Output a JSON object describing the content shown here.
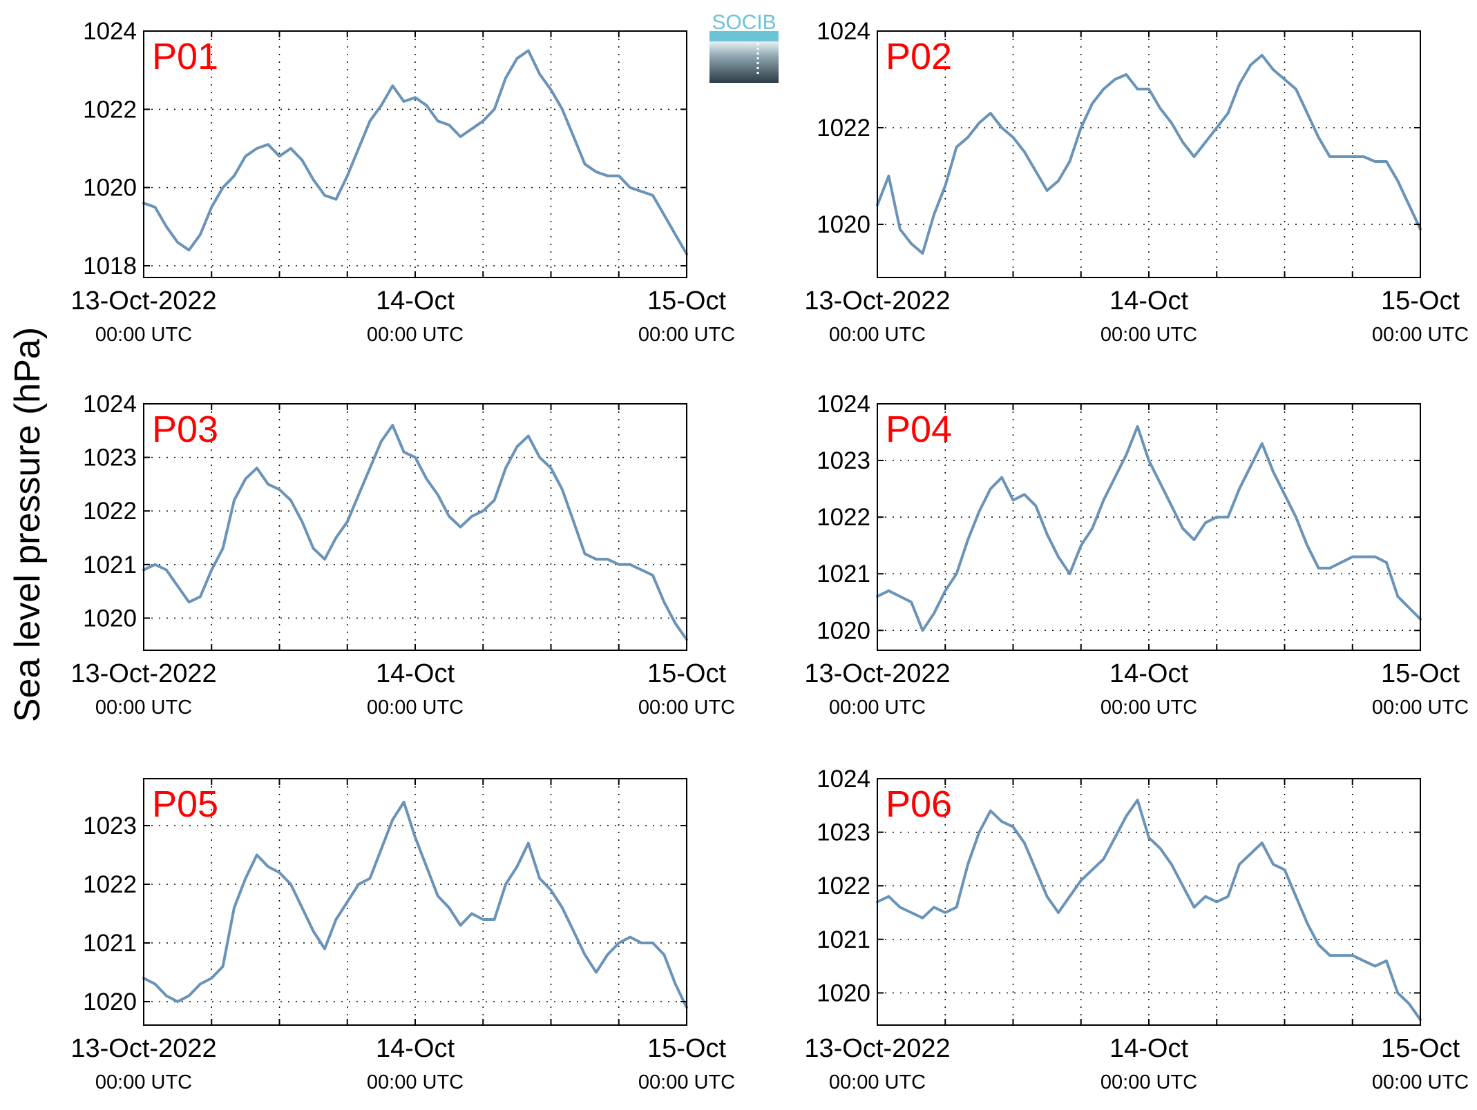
{
  "figure": {
    "ylabel": "Sea level pressure (hPa)",
    "line_color": "#6a93b8",
    "label_color": "#ff0000"
  },
  "logo": {
    "text": "SOCIB",
    "top_color": "#6cc3d5",
    "bottom_color": "#2c3b46"
  },
  "chart_data": [
    {
      "type": "line",
      "panel_label": "P01",
      "xlabel": "",
      "ylabel": "",
      "xlim": [
        "2022-10-13 00:00",
        "2022-10-15 00:00"
      ],
      "ylim": [
        1017.7,
        1024
      ],
      "yticks": [
        1018,
        1020,
        1022,
        1024
      ],
      "xticks": [
        {
          "label": "13-Oct-2022",
          "sub": "00:00 UTC"
        },
        {
          "label": "14-Oct",
          "sub": "00:00 UTC"
        },
        {
          "label": "15-Oct",
          "sub": "00:00 UTC"
        }
      ],
      "grid": true,
      "x_hours": [
        0,
        1,
        2,
        3,
        4,
        5,
        6,
        7,
        8,
        9,
        10,
        11,
        12,
        13,
        14,
        15,
        16,
        17,
        18,
        19,
        20,
        21,
        22,
        23,
        24,
        25,
        26,
        27,
        28,
        29,
        30,
        31,
        32,
        33,
        34,
        35,
        36,
        37,
        38,
        39,
        40,
        41,
        42,
        43,
        44,
        45,
        46,
        47,
        48
      ],
      "values": [
        1019.6,
        1019.5,
        1019.0,
        1018.6,
        1018.4,
        1018.8,
        1019.5,
        1020.0,
        1020.3,
        1020.8,
        1021.0,
        1021.1,
        1020.8,
        1021.0,
        1020.7,
        1020.2,
        1019.8,
        1019.7,
        1020.3,
        1021.0,
        1021.7,
        1022.1,
        1022.6,
        1022.2,
        1022.3,
        1022.1,
        1021.7,
        1021.6,
        1021.3,
        1021.5,
        1021.7,
        1022.0,
        1022.8,
        1023.3,
        1023.5,
        1022.9,
        1022.5,
        1022.0,
        1021.3,
        1020.6,
        1020.4,
        1020.3,
        1020.3,
        1020.0,
        1019.9,
        1019.8,
        1019.3,
        1018.8,
        1018.3
      ]
    },
    {
      "type": "line",
      "panel_label": "P02",
      "xlabel": "",
      "ylabel": "",
      "xlim": [
        "2022-10-13 00:00",
        "2022-10-15 00:00"
      ],
      "ylim": [
        1018.9,
        1024
      ],
      "yticks": [
        1020,
        1022,
        1024
      ],
      "xticks": [
        {
          "label": "13-Oct-2022",
          "sub": "00:00 UTC"
        },
        {
          "label": "14-Oct",
          "sub": "00:00 UTC"
        },
        {
          "label": "15-Oct",
          "sub": "00:00 UTC"
        }
      ],
      "grid": true,
      "x_hours": [
        0,
        1,
        2,
        3,
        4,
        5,
        6,
        7,
        8,
        9,
        10,
        11,
        12,
        13,
        14,
        15,
        16,
        17,
        18,
        19,
        20,
        21,
        22,
        23,
        24,
        25,
        26,
        27,
        28,
        29,
        30,
        31,
        32,
        33,
        34,
        35,
        36,
        37,
        38,
        39,
        40,
        41,
        42,
        43,
        44,
        45,
        46,
        47,
        48
      ],
      "values": [
        1020.4,
        1021.0,
        1019.9,
        1019.6,
        1019.4,
        1020.2,
        1020.8,
        1021.6,
        1021.8,
        1022.1,
        1022.3,
        1022.0,
        1021.8,
        1021.5,
        1021.1,
        1020.7,
        1020.9,
        1021.3,
        1022.0,
        1022.5,
        1022.8,
        1023.0,
        1023.1,
        1022.8,
        1022.8,
        1022.4,
        1022.1,
        1021.7,
        1021.4,
        1021.7,
        1022.0,
        1022.3,
        1022.9,
        1023.3,
        1023.5,
        1023.2,
        1023.0,
        1022.8,
        1022.3,
        1021.8,
        1021.4,
        1021.4,
        1021.4,
        1021.4,
        1021.3,
        1021.3,
        1020.9,
        1020.4,
        1019.9
      ]
    },
    {
      "type": "line",
      "panel_label": "P03",
      "xlabel": "",
      "ylabel": "",
      "xlim": [
        "2022-10-13 00:00",
        "2022-10-15 00:00"
      ],
      "ylim": [
        1019.4,
        1024
      ],
      "yticks": [
        1020,
        1021,
        1022,
        1023,
        1024
      ],
      "xticks": [
        {
          "label": "13-Oct-2022",
          "sub": "00:00 UTC"
        },
        {
          "label": "14-Oct",
          "sub": "00:00 UTC"
        },
        {
          "label": "15-Oct",
          "sub": "00:00 UTC"
        }
      ],
      "grid": true,
      "x_hours": [
        0,
        1,
        2,
        3,
        4,
        5,
        6,
        7,
        8,
        9,
        10,
        11,
        12,
        13,
        14,
        15,
        16,
        17,
        18,
        19,
        20,
        21,
        22,
        23,
        24,
        25,
        26,
        27,
        28,
        29,
        30,
        31,
        32,
        33,
        34,
        35,
        36,
        37,
        38,
        39,
        40,
        41,
        42,
        43,
        44,
        45,
        46,
        47,
        48
      ],
      "values": [
        1020.9,
        1021.0,
        1020.9,
        1020.6,
        1020.3,
        1020.4,
        1020.9,
        1021.3,
        1022.2,
        1022.6,
        1022.8,
        1022.5,
        1022.4,
        1022.2,
        1021.8,
        1021.3,
        1021.1,
        1021.5,
        1021.8,
        1022.3,
        1022.8,
        1023.3,
        1023.6,
        1023.1,
        1023.0,
        1022.6,
        1022.3,
        1021.9,
        1021.7,
        1021.9,
        1022.0,
        1022.2,
        1022.8,
        1023.2,
        1023.4,
        1023.0,
        1022.8,
        1022.4,
        1021.8,
        1021.2,
        1021.1,
        1021.1,
        1021.0,
        1021.0,
        1020.9,
        1020.8,
        1020.3,
        1019.9,
        1019.6
      ]
    },
    {
      "type": "line",
      "panel_label": "P04",
      "xlabel": "",
      "ylabel": "",
      "xlim": [
        "2022-10-13 00:00",
        "2022-10-15 00:00"
      ],
      "ylim": [
        1019.65,
        1024
      ],
      "yticks": [
        1020,
        1021,
        1022,
        1023,
        1024
      ],
      "xticks": [
        {
          "label": "13-Oct-2022",
          "sub": "00:00 UTC"
        },
        {
          "label": "14-Oct",
          "sub": "00:00 UTC"
        },
        {
          "label": "15-Oct",
          "sub": "00:00 UTC"
        }
      ],
      "grid": true,
      "x_hours": [
        0,
        1,
        2,
        3,
        4,
        5,
        6,
        7,
        8,
        9,
        10,
        11,
        12,
        13,
        14,
        15,
        16,
        17,
        18,
        19,
        20,
        21,
        22,
        23,
        24,
        25,
        26,
        27,
        28,
        29,
        30,
        31,
        32,
        33,
        34,
        35,
        36,
        37,
        38,
        39,
        40,
        41,
        42,
        43,
        44,
        45,
        46,
        47,
        48
      ],
      "values": [
        1020.6,
        1020.7,
        1020.6,
        1020.5,
        1020.0,
        1020.3,
        1020.7,
        1021.0,
        1021.6,
        1022.1,
        1022.5,
        1022.7,
        1022.3,
        1022.4,
        1022.2,
        1021.7,
        1021.3,
        1021.0,
        1021.5,
        1021.8,
        1022.3,
        1022.7,
        1023.1,
        1023.6,
        1023.0,
        1022.6,
        1022.2,
        1021.8,
        1021.6,
        1021.9,
        1022.0,
        1022.0,
        1022.5,
        1022.9,
        1023.3,
        1022.8,
        1022.4,
        1022.0,
        1021.5,
        1021.1,
        1021.1,
        1021.2,
        1021.3,
        1021.3,
        1021.3,
        1021.2,
        1020.6,
        1020.4,
        1020.2
      ]
    },
    {
      "type": "line",
      "panel_label": "P05",
      "xlabel": "",
      "ylabel": "",
      "xlim": [
        "2022-10-13 00:00",
        "2022-10-15 00:00"
      ],
      "ylim": [
        1019.6,
        1023.8
      ],
      "yticks": [
        1020,
        1021,
        1022,
        1023
      ],
      "xticks": [
        {
          "label": "13-Oct-2022",
          "sub": "00:00 UTC"
        },
        {
          "label": "14-Oct",
          "sub": "00:00 UTC"
        },
        {
          "label": "15-Oct",
          "sub": "00:00 UTC"
        }
      ],
      "grid": true,
      "x_hours": [
        0,
        1,
        2,
        3,
        4,
        5,
        6,
        7,
        8,
        9,
        10,
        11,
        12,
        13,
        14,
        15,
        16,
        17,
        18,
        19,
        20,
        21,
        22,
        23,
        24,
        25,
        26,
        27,
        28,
        29,
        30,
        31,
        32,
        33,
        34,
        35,
        36,
        37,
        38,
        39,
        40,
        41,
        42,
        43,
        44,
        45,
        46,
        47,
        48
      ],
      "values": [
        1020.4,
        1020.3,
        1020.1,
        1020.0,
        1020.1,
        1020.3,
        1020.4,
        1020.6,
        1021.6,
        1022.1,
        1022.5,
        1022.3,
        1022.2,
        1022.0,
        1021.6,
        1021.2,
        1020.9,
        1021.4,
        1021.7,
        1022.0,
        1022.1,
        1022.6,
        1023.1,
        1023.4,
        1022.8,
        1022.3,
        1021.8,
        1021.6,
        1021.3,
        1021.5,
        1021.4,
        1021.4,
        1022.0,
        1022.3,
        1022.7,
        1022.1,
        1021.9,
        1021.6,
        1021.2,
        1020.8,
        1020.5,
        1020.8,
        1021.0,
        1021.1,
        1021.0,
        1021.0,
        1020.8,
        1020.3,
        1019.9
      ]
    },
    {
      "type": "line",
      "panel_label": "P06",
      "xlabel": "",
      "ylabel": "",
      "xlim": [
        "2022-10-13 00:00",
        "2022-10-15 00:00"
      ],
      "ylim": [
        1019.4,
        1024
      ],
      "yticks": [
        1020,
        1021,
        1022,
        1023,
        1024
      ],
      "xticks": [
        {
          "label": "13-Oct-2022",
          "sub": "00:00 UTC"
        },
        {
          "label": "14-Oct",
          "sub": "00:00 UTC"
        },
        {
          "label": "15-Oct",
          "sub": "00:00 UTC"
        }
      ],
      "grid": true,
      "x_hours": [
        0,
        1,
        2,
        3,
        4,
        5,
        6,
        7,
        8,
        9,
        10,
        11,
        12,
        13,
        14,
        15,
        16,
        17,
        18,
        19,
        20,
        21,
        22,
        23,
        24,
        25,
        26,
        27,
        28,
        29,
        30,
        31,
        32,
        33,
        34,
        35,
        36,
        37,
        38,
        39,
        40,
        41,
        42,
        43,
        44,
        45,
        46,
        47,
        48
      ],
      "values": [
        1021.7,
        1021.8,
        1021.6,
        1021.5,
        1021.4,
        1021.6,
        1021.5,
        1021.6,
        1022.4,
        1023.0,
        1023.4,
        1023.2,
        1023.1,
        1022.8,
        1022.3,
        1021.8,
        1021.5,
        1021.8,
        1022.1,
        1022.3,
        1022.5,
        1022.9,
        1023.3,
        1023.6,
        1022.9,
        1022.7,
        1022.4,
        1022.0,
        1021.6,
        1021.8,
        1021.7,
        1021.8,
        1022.4,
        1022.6,
        1022.8,
        1022.4,
        1022.3,
        1021.8,
        1021.3,
        1020.9,
        1020.7,
        1020.7,
        1020.7,
        1020.6,
        1020.5,
        1020.6,
        1020.0,
        1019.8,
        1019.5
      ]
    }
  ]
}
